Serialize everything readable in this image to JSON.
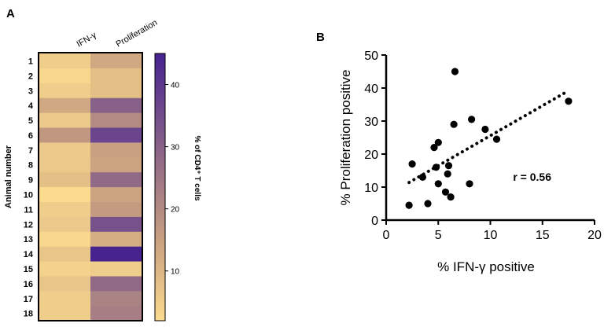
{
  "colors": {
    "low": "#fbdc8e",
    "mid": "#c9a080",
    "high": "#472390",
    "point": "#000000",
    "outline": "#000000"
  },
  "chart_data": [
    {
      "panel": "A",
      "type": "heatmap",
      "columns": [
        "IFN-γ",
        "Proliferation"
      ],
      "rows": [
        "1",
        "2",
        "3",
        "4",
        "5",
        "6",
        "7",
        "8",
        "9",
        "10",
        "11",
        "12",
        "13",
        "14",
        "15",
        "16",
        "17",
        "18"
      ],
      "values": [
        [
          5,
          13
        ],
        [
          3,
          8
        ],
        [
          5,
          8
        ],
        [
          13,
          30
        ],
        [
          6,
          20
        ],
        [
          17,
          37
        ],
        [
          6,
          15
        ],
        [
          6,
          14
        ],
        [
          8,
          28
        ],
        [
          2,
          14
        ],
        [
          5,
          16
        ],
        [
          6,
          34
        ],
        [
          3,
          12
        ],
        [
          7,
          45
        ],
        [
          4,
          5
        ],
        [
          7,
          28
        ],
        [
          5,
          22
        ],
        [
          5,
          23
        ]
      ],
      "ylabel": "Animal number",
      "colorbar": {
        "label": "% of CD4⁺ T cells",
        "ticks": [
          10,
          20,
          30,
          40
        ],
        "range": [
          2,
          45
        ]
      }
    },
    {
      "panel": "B",
      "type": "scatter",
      "x": [
        2.2,
        2.5,
        3.5,
        4.0,
        4.6,
        4.8,
        5.0,
        5.0,
        5.7,
        5.9,
        6.0,
        6.2,
        6.5,
        6.6,
        8.0,
        8.2,
        9.5,
        10.6,
        17.5
      ],
      "y": [
        4.5,
        17.0,
        13.0,
        5.0,
        22.0,
        16.0,
        11.0,
        23.5,
        8.5,
        14.0,
        16.5,
        7.0,
        29.0,
        45.0,
        11.0,
        30.5,
        27.5,
        24.5,
        36.0
      ],
      "trendline": {
        "x": [
          2.2,
          17.5
        ],
        "y": [
          11.4,
          39.2
        ]
      },
      "xlabel": "% IFN-γ positive",
      "ylabel": "% Proliferation positive",
      "xlim": [
        0,
        20
      ],
      "ylim": [
        0,
        50
      ],
      "xticks": [
        0,
        5,
        10,
        15,
        20
      ],
      "yticks": [
        0,
        10,
        20,
        30,
        40,
        50
      ],
      "annotation": "r = 0.56"
    }
  ]
}
